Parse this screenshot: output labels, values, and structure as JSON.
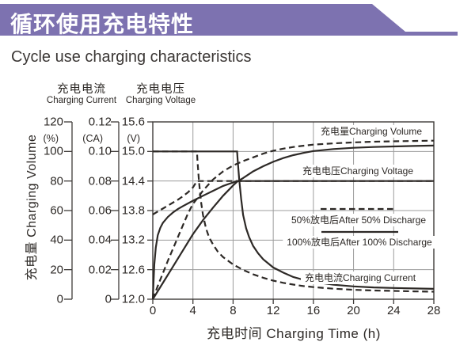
{
  "header": {
    "title_cn": "循环使用充电特性",
    "subtitle_en": "Cycle use charging characteristics"
  },
  "colors": {
    "banner_purple": "#7d72b0",
    "ink": "#2d2926",
    "grid_gray": "#9c9c9c",
    "axis_dark": "#3f3b39",
    "background": "#ffffff"
  },
  "chart_data": {
    "type": "line",
    "title": "Cycle use charging characteristics",
    "xlabel": "充电时间 Charging Time (h)",
    "x_range": [
      0,
      28
    ],
    "x_ticks": [
      "0",
      "4",
      "8",
      "12",
      "16",
      "20",
      "24",
      "28"
    ],
    "x_grid": [
      4,
      8,
      12,
      16,
      20,
      24
    ],
    "y_grid_voltage": [
      15.0,
      14.4,
      13.8,
      13.2,
      12.6
    ],
    "grid": true,
    "axes": [
      {
        "id": "volume",
        "label_cn": "充电量",
        "label_en": "Charging Volume",
        "unit": "(%)",
        "ticks": [
          "120",
          "100",
          "80",
          "60",
          "40",
          "20",
          "0"
        ],
        "range": [
          0,
          120
        ]
      },
      {
        "id": "current",
        "label_cn": "充电电流",
        "label_en": "Charging Current",
        "unit": "(CA)",
        "ticks": [
          "0.12",
          "0.10",
          "0.08",
          "0.06",
          "0.04",
          "0.02",
          "0"
        ],
        "range": [
          0,
          0.12
        ]
      },
      {
        "id": "voltage",
        "label_cn": "充电电压",
        "label_en": "Charging Voltage",
        "unit": "(V)",
        "ticks": [
          "15.6",
          "15.0",
          "14.4",
          "13.8",
          "13.2",
          "12.6",
          "12.0"
        ],
        "range": [
          12.0,
          15.6
        ]
      }
    ],
    "plot_labels": {
      "volume": "充电量Charging Volume",
      "voltage": "充电电压Charging Voltage",
      "current": "充电电流Charging Current"
    },
    "legend": [
      {
        "style": "dashed",
        "label": "50%放电后After 50% Discharge"
      },
      {
        "style": "solid",
        "label": "100%放电后After 100% Discharge"
      }
    ],
    "series": [
      {
        "name": "Charging Volume after 100% discharge",
        "axis": "volume",
        "style": "solid",
        "points": [
          [
            0,
            0
          ],
          [
            1,
            11
          ],
          [
            2,
            22
          ],
          [
            3,
            33
          ],
          [
            4,
            44
          ],
          [
            5,
            53.5
          ],
          [
            6,
            62
          ],
          [
            7,
            70
          ],
          [
            8,
            77
          ],
          [
            8.4,
            79.5
          ],
          [
            9,
            82
          ],
          [
            10,
            86.5
          ],
          [
            11,
            90
          ],
          [
            12,
            93
          ],
          [
            13,
            95.5
          ],
          [
            14,
            97.5
          ],
          [
            15,
            99
          ],
          [
            16,
            100.3
          ],
          [
            18,
            101.6
          ],
          [
            20,
            102.5
          ],
          [
            22,
            103
          ],
          [
            24,
            103.4
          ],
          [
            26,
            103.7
          ],
          [
            28,
            104
          ]
        ]
      },
      {
        "name": "Charging Voltage after 100% discharge",
        "axis": "voltage",
        "style": "solid",
        "points": [
          [
            0,
            12.0
          ],
          [
            0.15,
            12.7
          ],
          [
            0.3,
            13.05
          ],
          [
            0.5,
            13.3
          ],
          [
            0.75,
            13.45
          ],
          [
            1,
            13.55
          ],
          [
            1.5,
            13.67
          ],
          [
            2,
            13.76
          ],
          [
            2.5,
            13.83
          ],
          [
            3,
            13.89
          ],
          [
            4,
            14.0
          ],
          [
            5,
            14.1
          ],
          [
            6,
            14.2
          ],
          [
            7,
            14.3
          ],
          [
            8,
            14.37
          ],
          [
            8.4,
            14.4
          ],
          [
            28,
            14.4
          ]
        ]
      },
      {
        "name": "Charging Current after 100% discharge",
        "axis": "current",
        "style": "solid",
        "points": [
          [
            0,
            0.1
          ],
          [
            8.4,
            0.1
          ],
          [
            8.45,
            0.095
          ],
          [
            8.6,
            0.082
          ],
          [
            8.8,
            0.068
          ],
          [
            9,
            0.057
          ],
          [
            9.3,
            0.048
          ],
          [
            9.6,
            0.042
          ],
          [
            10,
            0.036
          ],
          [
            10.5,
            0.031
          ],
          [
            11,
            0.027
          ],
          [
            12,
            0.0215
          ],
          [
            13,
            0.018
          ],
          [
            14,
            0.015
          ],
          [
            15,
            0.0132
          ],
          [
            16,
            0.0118
          ],
          [
            18,
            0.0098
          ],
          [
            20,
            0.0087
          ],
          [
            22,
            0.008
          ],
          [
            24,
            0.0076
          ],
          [
            26,
            0.0073
          ],
          [
            28,
            0.007
          ]
        ]
      },
      {
        "name": "Charging Volume after 50% discharge",
        "axis": "volume",
        "style": "dashed",
        "points": [
          [
            0,
            0
          ],
          [
            0.5,
            9
          ],
          [
            1,
            17.5
          ],
          [
            1.5,
            26
          ],
          [
            2,
            34
          ],
          [
            2.5,
            42
          ],
          [
            3,
            50
          ],
          [
            3.5,
            58
          ],
          [
            4,
            64.5
          ],
          [
            4.4,
            68
          ],
          [
            5,
            73.5
          ],
          [
            6,
            81
          ],
          [
            7,
            86.5
          ],
          [
            8,
            90.5
          ],
          [
            9,
            93.5
          ],
          [
            10,
            96
          ],
          [
            11,
            98.5
          ],
          [
            12,
            100.5
          ],
          [
            13,
            101.9
          ],
          [
            14,
            103
          ],
          [
            15,
            103.9
          ],
          [
            16,
            104.6
          ],
          [
            18,
            105.5
          ],
          [
            20,
            106.1
          ],
          [
            22,
            106.6
          ],
          [
            24,
            106.9
          ],
          [
            26,
            107.1
          ],
          [
            28,
            107.3
          ]
        ]
      },
      {
        "name": "Charging Voltage after 50% discharge",
        "axis": "voltage",
        "style": "dashed",
        "points": [
          [
            0,
            13.72
          ],
          [
            0.5,
            13.78
          ],
          [
            1,
            13.84
          ],
          [
            1.5,
            13.9
          ],
          [
            2,
            13.96
          ],
          [
            2.5,
            14.02
          ],
          [
            3,
            14.09
          ],
          [
            3.5,
            14.17
          ],
          [
            4,
            14.27
          ],
          [
            4.4,
            14.4
          ],
          [
            28,
            14.4
          ]
        ]
      },
      {
        "name": "Charging Current after 50% discharge",
        "axis": "current",
        "style": "dashed",
        "points": [
          [
            0,
            0.1
          ],
          [
            4.4,
            0.1
          ],
          [
            4.45,
            0.094
          ],
          [
            4.6,
            0.08
          ],
          [
            4.8,
            0.066
          ],
          [
            5,
            0.057
          ],
          [
            5.3,
            0.048
          ],
          [
            5.6,
            0.042
          ],
          [
            6,
            0.037
          ],
          [
            6.5,
            0.032
          ],
          [
            7,
            0.0285
          ],
          [
            8,
            0.0235
          ],
          [
            9,
            0.0198
          ],
          [
            10,
            0.0168
          ],
          [
            11,
            0.0145
          ],
          [
            12,
            0.0126
          ],
          [
            13,
            0.0111
          ],
          [
            14,
            0.0099
          ],
          [
            15,
            0.0089
          ],
          [
            16,
            0.0082
          ],
          [
            18,
            0.0071
          ],
          [
            20,
            0.0064
          ],
          [
            22,
            0.0059
          ],
          [
            24,
            0.0056
          ],
          [
            26,
            0.0053
          ],
          [
            28,
            0.0051
          ]
        ]
      }
    ]
  }
}
